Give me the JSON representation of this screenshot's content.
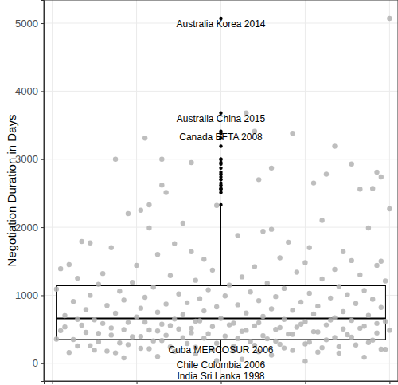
{
  "chart_data": {
    "type": "box",
    "y_label": "Negotiation Duration in Days",
    "xlim": [
      -0.42,
      0.42
    ],
    "xticks": [
      -0.4,
      -0.2,
      0,
      0.2,
      0.4
    ],
    "ylim": [
      -260,
      5340
    ],
    "yticks": [
      0,
      1000,
      2000,
      3000,
      4000,
      5000
    ],
    "grid": true,
    "tick_labels": "y",
    "color": "#000000",
    "box": {
      "q1": 350,
      "median": 660,
      "q3": 1140,
      "whisker_low": 30,
      "whisker_high": 2320
    },
    "outliers": {
      "color": "#000000",
      "values": [
        5070,
        3680,
        3410,
        3380,
        3310,
        3190,
        3000,
        3000,
        2950,
        2930,
        2870,
        2810,
        2780,
        2740,
        2700,
        2650,
        2620,
        2570,
        2560,
        2510,
        2330
      ]
    },
    "points": {
      "color": "#b3b3b3",
      "x": [
        0.4,
        0.06,
        0.17,
        0.08,
        -0.25,
        -0.14,
        -0.07,
        0.31,
        0.12,
        0.37,
        0.25,
        0.38,
        0.09,
        0.22,
        -0.14,
        0.33,
        0.36,
        -0.13,
        -0.17,
        -0.01,
        0.4,
        -0.19,
        -0.22,
        0.24,
        -0.09,
        -0.17,
        0.35,
        0.12,
        0.1,
        0.04,
        -0.33,
        0.16,
        -0.31,
        -0.11,
        0.21,
        -0.26,
        0.29,
        -0.07,
        -0.15,
        0.14,
        -0.04,
        0.31,
        0.38,
        0.2,
        -0.36,
        0.37,
        -0.2,
        0.08,
        -0.38,
        0.27,
        -0.02,
        0.18,
        -0.28,
        0.33,
        -0.12,
        0.05,
        -0.34,
        0.24,
        -0.06,
        0.39,
        -0.21,
        0.11,
        -0.29,
        0.02,
        0.28,
        -0.16,
        0.15,
        -0.39,
        -0.03,
        0.34,
        -0.24,
        0.07,
        0.21,
        -0.1,
        0.3,
        -0.31,
        0.01,
        0.13,
        -0.18,
        0.26,
        -0.05,
        0.36,
        -0.23,
        0.09,
        -0.35,
        0.19,
        -0.08,
        0.32,
        -0.13,
        0.04,
        -0.27,
        0.23,
        -0.01,
        0.38,
        -0.19,
        0.12,
        -0.32,
        0.17,
        -0.04,
        0.29,
        -0.15,
        0.06,
        -0.25,
        0.22,
        -0.09,
        0.35,
        -0.37,
        0.1,
        -0.2,
        0.27,
        0,
        -0.11,
        0.15,
        -0.3,
        0.31,
        -0.06,
        0.2,
        -0.22,
        0.03,
        0.37,
        -0.14,
        0.25,
        -0.33,
        0.08,
        -0.02,
        0.18,
        -0.26,
        0.33,
        -0.1,
        0.13,
        -0.17,
        0.4,
        -0.38,
        0.05,
        0.23,
        -0.07,
        -0.29,
        0.16,
        0.3,
        -0.13,
        0.01,
        -0.21,
        0.27,
        -0.04,
        0.11,
        -0.35,
        0.36,
        -0.16,
        0.07,
        0.21,
        -0.24,
        -0.08,
        0.14,
        0.32,
        -0.31,
        0.03,
        -0.12,
        0.24,
        -0.19,
        0.38,
        -0.02,
        0.17,
        -0.27,
        0.09,
        -0.36,
        0.28,
        -0.06,
        0.12,
        -0.15,
        0.34,
        -0.23,
        0.05,
        -0.01,
        0.2,
        -0.18,
        0.27,
        -0.34,
        0.26,
        -0.05,
        0.39,
        -0.18,
        0.09,
        -0.28,
        0.19,
        0.02,
        -0.12,
        0.34,
        -0.37,
        0.14,
        -0.07,
        0.29,
        -0.23,
        0.06,
        -0.15,
        0.22,
        -0.32,
        0.37,
        -0.03,
        0.17,
        -0.26,
        0.1,
        -0.19,
        0.31,
        -0.09,
        0.04,
        -0.39,
        0.25,
        -0.14,
        0.13,
        -0.29,
        0.35,
        -0.01,
        0.2,
        -0.22,
        0.08,
        -0.34,
        0.28,
        -0.06,
        0.15,
        -0.17,
        0.39,
        -0.3,
        0.03,
        -0.11,
        0.23,
        -0.25
      ],
      "values": [
        5070,
        3680,
        3380,
        3410,
        3000,
        3000,
        2950,
        2930,
        2870,
        2810,
        2780,
        2740,
        2700,
        2650,
        2620,
        2560,
        2570,
        2510,
        2330,
        2320,
        2270,
        2250,
        2200,
        2100,
        2060,
        1990,
        1990,
        1970,
        1940,
        1880,
        1790,
        1780,
        1770,
        1760,
        1700,
        1700,
        1640,
        1640,
        1600,
        1550,
        1530,
        1510,
        1500,
        1480,
        1450,
        1440,
        1440,
        1420,
        1390,
        1380,
        1370,
        1340,
        1320,
        1300,
        1290,
        1270,
        1250,
        1240,
        1220,
        1210,
        1190,
        1180,
        1160,
        1150,
        1130,
        1120,
        1100,
        1090,
        1080,
        1070,
        1060,
        1050,
        1030,
        1020,
        1010,
        1000,
        990,
        980,
        970,
        960,
        950,
        940,
        930,
        920,
        910,
        900,
        890,
        880,
        870,
        860,
        850,
        840,
        830,
        820,
        810,
        800,
        790,
        780,
        770,
        760,
        750,
        740,
        735,
        725,
        715,
        705,
        700,
        690,
        680,
        670,
        660,
        650,
        645,
        640,
        630,
        620,
        610,
        600,
        590,
        585,
        575,
        565,
        560,
        550,
        540,
        530,
        520,
        515,
        505,
        500,
        490,
        485,
        480,
        470,
        460,
        450,
        440,
        430,
        420,
        410,
        400,
        390,
        380,
        370,
        360,
        350,
        340,
        330,
        320,
        310,
        300,
        290,
        280,
        270,
        260,
        250,
        240,
        230,
        220,
        210,
        200,
        190,
        180,
        170,
        160,
        150,
        140,
        120,
        100,
        90,
        80,
        60,
        40,
        30,
        3310,
        3190,
        645,
        635,
        625,
        615,
        605,
        595,
        585,
        575,
        565,
        555,
        545,
        535,
        525,
        515,
        505,
        495,
        485,
        475,
        465,
        455,
        445,
        435,
        425,
        415,
        405,
        395,
        385,
        375,
        365,
        355,
        345,
        335,
        325,
        315,
        305,
        295,
        285,
        275,
        265,
        255,
        245,
        235,
        225,
        215,
        205,
        195,
        185,
        175,
        165,
        155
      ]
    },
    "annotations": [
      {
        "text": "Australia Korea 2014",
        "y": 5070
      },
      {
        "text": "Australia China 2015",
        "y": 3680
      },
      {
        "text": "Canada EFTA 2008",
        "y": 3410
      },
      {
        "text": "Cuba MERCOSUR 2006",
        "y": 280
      },
      {
        "text": "Chile Colombia 2006",
        "y": 60
      },
      {
        "text": "India Sri Lanka 1998",
        "y": 30
      }
    ]
  }
}
